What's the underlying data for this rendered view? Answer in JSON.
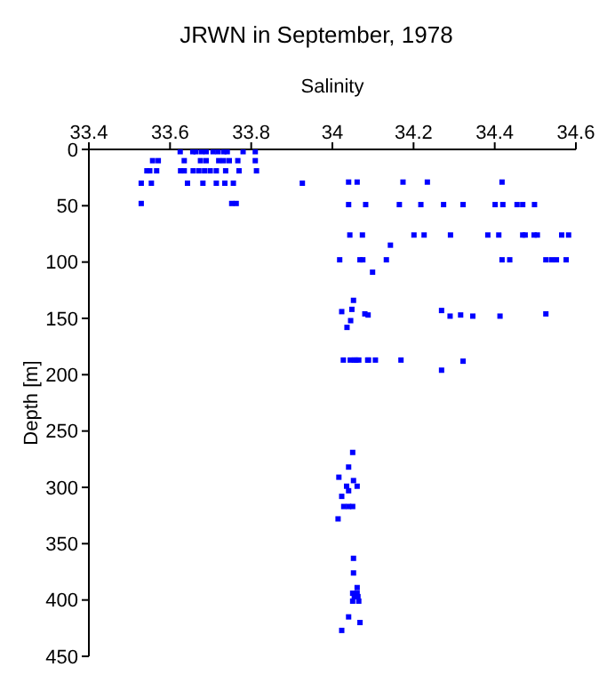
{
  "chart_data": {
    "type": "scatter",
    "title": "JRWN in September, 1978",
    "xlabel": "Salinity",
    "ylabel": "Depth [m]",
    "xlim": [
      33.4,
      34.6
    ],
    "xticks": [
      33.4,
      33.6,
      33.8,
      34,
      34.2,
      34.4,
      34.6
    ],
    "ylim": [
      450,
      0
    ],
    "yticks": [
      0,
      50,
      100,
      150,
      200,
      250,
      300,
      350,
      400,
      450
    ],
    "marker": "square",
    "grid": false,
    "series": [
      {
        "color": "#0000ff",
        "x": [
          33.625,
          33.656,
          33.664,
          33.678,
          33.689,
          33.706,
          33.718,
          33.732,
          33.741,
          33.78,
          33.81,
          33.557,
          33.571,
          33.635,
          33.675,
          33.689,
          33.72,
          33.732,
          33.746,
          33.767,
          33.81,
          33.543,
          33.55,
          33.567,
          33.626,
          33.635,
          33.657,
          33.671,
          33.685,
          33.699,
          33.714,
          33.737,
          33.77,
          33.813,
          33.529,
          33.554,
          33.643,
          33.681,
          33.714,
          33.735,
          33.756,
          33.926,
          33.529,
          33.752,
          33.763,
          34.04,
          34.061,
          34.174,
          34.234,
          34.418,
          34.04,
          34.082,
          34.165,
          34.218,
          34.274,
          34.322,
          34.401,
          34.42,
          34.455,
          34.469,
          34.498,
          34.043,
          34.074,
          34.201,
          34.226,
          34.291,
          34.383,
          34.41,
          34.469,
          34.475,
          34.497,
          34.505,
          34.565,
          34.582,
          34.143,
          34.018,
          34.068,
          34.075,
          34.133,
          34.418,
          34.437,
          34.526,
          34.54,
          34.552,
          34.576,
          34.099,
          34.052,
          34.023,
          34.048,
          34.08,
          34.088,
          34.269,
          34.29,
          34.316,
          34.346,
          34.413,
          34.526,
          34.045,
          34.036,
          34.027,
          34.044,
          34.054,
          34.058,
          34.065,
          34.087,
          34.089,
          34.106,
          34.169,
          34.269,
          34.322,
          34.05,
          34.04,
          34.016,
          34.052,
          34.035,
          34.061,
          34.04,
          34.023,
          34.028,
          34.04,
          34.05,
          34.014,
          34.052,
          34.052,
          34.061,
          34.05,
          34.061,
          34.054,
          34.063,
          34.05,
          34.065,
          34.04,
          34.068,
          34.023
        ],
        "values": [
          2,
          2,
          2,
          2,
          2,
          2,
          2,
          2,
          2,
          2,
          2,
          10,
          10,
          10,
          10,
          10,
          10,
          10,
          10,
          10,
          10,
          19,
          19,
          19,
          19,
          19,
          19,
          19,
          19,
          19,
          19,
          19,
          19,
          19,
          30,
          30,
          30,
          30,
          30,
          30,
          30,
          30,
          48,
          48,
          48,
          29,
          29,
          29,
          29,
          29,
          49,
          49,
          49,
          49,
          49,
          49,
          49,
          49,
          49,
          49,
          49,
          76,
          76,
          76,
          76,
          76,
          76,
          76,
          76,
          76,
          76,
          76,
          76,
          76,
          85,
          98,
          98,
          98,
          98,
          98,
          98,
          98,
          98,
          98,
          98,
          109,
          134,
          144,
          142,
          146,
          147,
          143,
          148,
          147,
          148,
          148,
          146,
          152,
          158,
          187,
          187,
          187,
          187,
          187,
          187,
          187,
          187,
          187,
          196,
          188,
          269,
          282,
          291,
          294,
          299,
          299,
          303,
          308,
          317,
          317,
          317,
          328,
          363,
          376,
          389,
          394,
          394,
          397,
          397,
          401,
          401,
          415,
          420,
          427
        ]
      }
    ]
  }
}
